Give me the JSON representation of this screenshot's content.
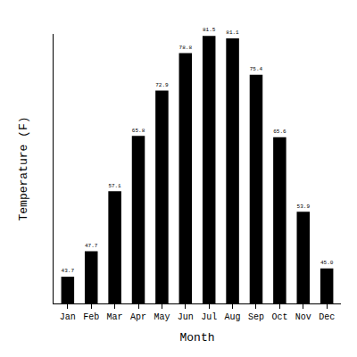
{
  "chart_data": {
    "type": "bar",
    "x_label": "Month",
    "y_label": "Temperature (F)",
    "categories": [
      "Jan",
      "Feb",
      "Mar",
      "Apr",
      "May",
      "Jun",
      "Jul",
      "Aug",
      "Sep",
      "Oct",
      "Nov",
      "Dec"
    ],
    "values": [
      43.7,
      47.7,
      57.1,
      65.8,
      72.9,
      78.8,
      81.5,
      81.1,
      75.4,
      65.6,
      53.9,
      45.0
    ],
    "value_labels": [
      "43.7",
      "47.7",
      "57.1",
      "65.8",
      "72.9",
      "78.8",
      "81.5",
      "81.1",
      "75.4",
      "65.6",
      "53.9",
      "45.0"
    ],
    "color": "#000000",
    "ylim": [
      39.5,
      81.8
    ],
    "grid": false,
    "data_labels": true,
    "tick_labels": "x"
  }
}
